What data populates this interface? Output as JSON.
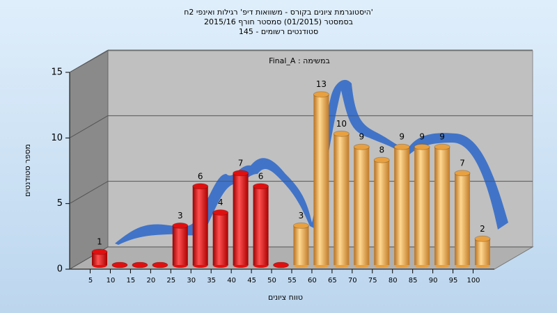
{
  "chart_data": {
    "type": "bar3d",
    "title": "היסטוגרמת ציונים בקורס - משוואות דיפ' רגילות ואינפי 2ח'",
    "subtitle": [
      "בסמסטר  (01/2015)  סמסטר חורף 2015/16",
      "145 - סטודנטים רשומים"
    ],
    "annotation": "Final_A : במשימה",
    "x_label": "טווח ציונים",
    "y_label": "מספר סטודנטים",
    "categories": [
      "5",
      "10",
      "15",
      "20",
      "25",
      "30",
      "35",
      "40",
      "45",
      "50",
      "55",
      "60",
      "65",
      "70",
      "75",
      "80",
      "85",
      "90",
      "95",
      "100"
    ],
    "values": [
      1,
      0,
      0,
      0,
      3,
      6,
      4,
      7,
      6,
      0,
      3,
      13,
      10,
      9,
      8,
      9,
      9,
      9,
      7,
      2
    ],
    "colors": [
      "#e01010",
      "#e01010",
      "#e01010",
      "#e01010",
      "#e01010",
      "#e01010",
      "#e01010",
      "#e01010",
      "#e01010",
      "#e01010",
      "#e8a040",
      "#e8a040",
      "#e8a040",
      "#e8a040",
      "#e8a040",
      "#e8a040",
      "#e8a040",
      "#e8a040",
      "#e8a040",
      "#e8a040"
    ],
    "ylim": [
      0,
      15
    ],
    "yticks": [
      0,
      5,
      10,
      15
    ],
    "grid": true
  }
}
